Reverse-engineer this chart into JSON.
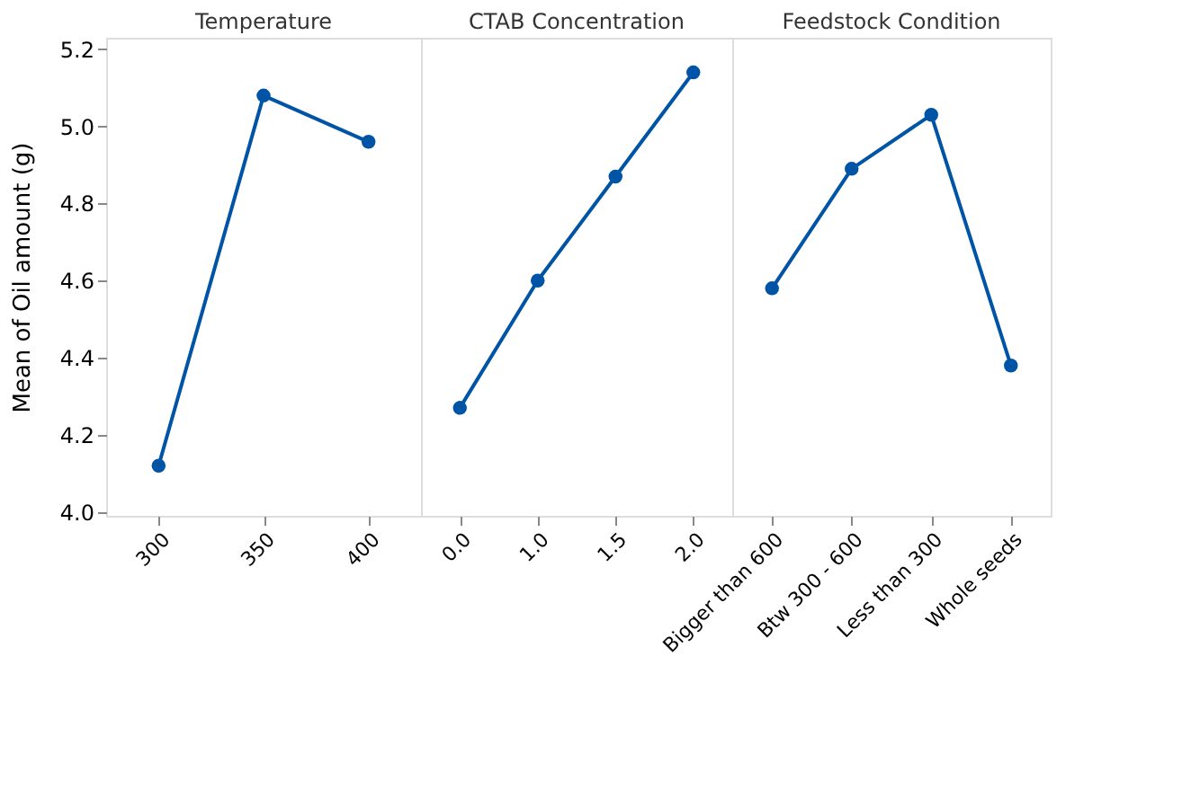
{
  "chart_data": [
    {
      "type": "line",
      "title": "Temperature",
      "ylabel": "Mean of Oil amount (g)",
      "categories": [
        "300",
        "350",
        "400"
      ],
      "values": [
        4.12,
        5.08,
        4.96
      ],
      "color": "#0054a6",
      "marker": "circle",
      "ylim": [
        3.99,
        5.23
      ],
      "yticks": [
        {
          "value": 4,
          "label": "4.0"
        },
        4.2,
        4.4,
        4.6,
        4.8,
        {
          "value": 5,
          "label": "5.0"
        },
        5.2
      ],
      "grid": false
    },
    {
      "type": "line",
      "title": "CTAB Concentration",
      "categories": [
        "0.0",
        "1.0",
        "1.5",
        "2.0"
      ],
      "values": [
        4.27,
        4.6,
        4.87,
        5.14
      ],
      "color": "#0054a6",
      "marker": "circle",
      "ylim": [
        3.99,
        5.23
      ],
      "tick_labels": "x",
      "grid": false
    },
    {
      "type": "line",
      "title": "Feedstock Condition",
      "categories": [
        "Bigger than 600",
        "Btw 300 - 600",
        "Less than 300",
        "Whole seeds"
      ],
      "values": [
        4.58,
        4.89,
        5.03,
        4.38
      ],
      "color": "#0054a6",
      "marker": "circle",
      "ylim": [
        3.99,
        5.23
      ],
      "tick_labels": "x",
      "grid": false
    }
  ]
}
